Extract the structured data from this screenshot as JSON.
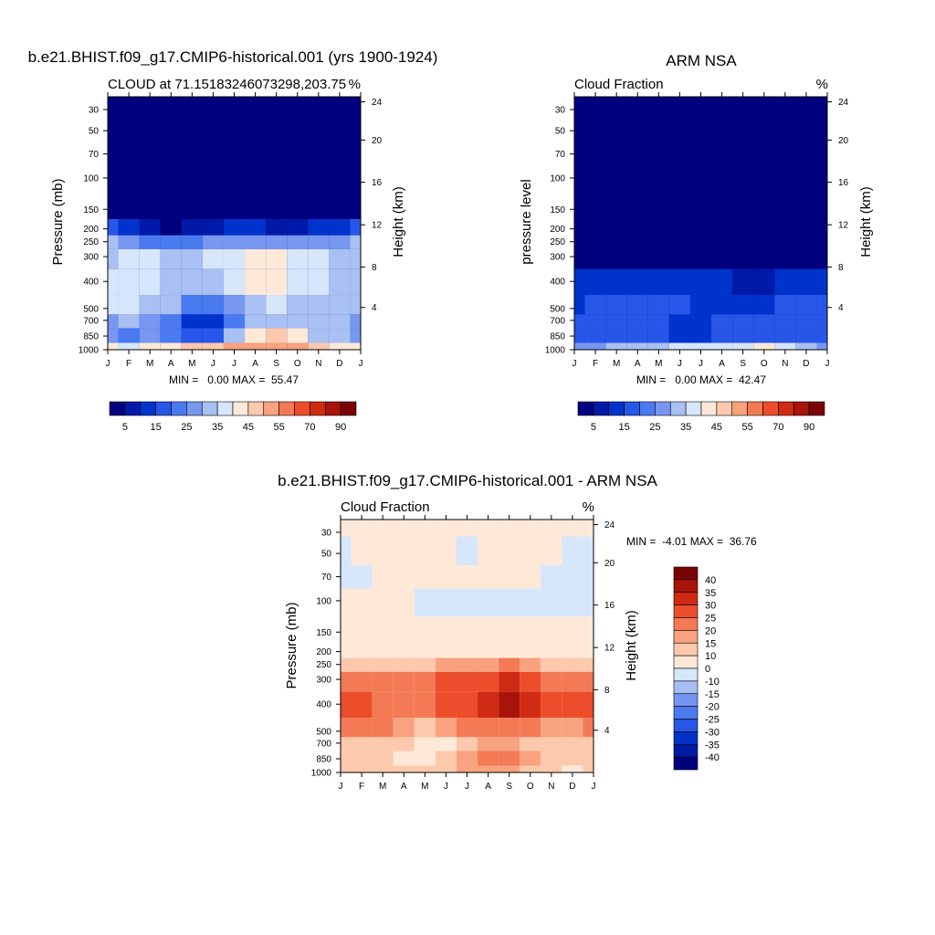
{
  "colors": {
    "model_obs_scale": [
      "#00007f",
      "#0019a8",
      "#0033cc",
      "#2856e8",
      "#4a7af0",
      "#7797f0",
      "#a9c0f4",
      "#d6e6fb",
      "#fee9d8",
      "#fcc9ad",
      "#f8a27f",
      "#f47a56",
      "#ec4d2b",
      "#cf2a14",
      "#a8130a",
      "#7a0403"
    ],
    "diff_scale": [
      "#00007f",
      "#001aa3",
      "#0033c7",
      "#2856e6",
      "#4b79ef",
      "#7595f1",
      "#a6c0f6",
      "#d6e6fb",
      "#fee9d8",
      "#fcc9ad",
      "#f9a27f",
      "#f47a56",
      "#ec4d2b",
      "#cf2a14",
      "#a8130a",
      "#7a0403"
    ]
  },
  "chart_data": [
    {
      "type": "heatmap",
      "id": "model",
      "suptitle": "b.e21.BHIST.f09_g17.CMIP6-historical.001 (yrs 1900-1924)",
      "title_left": "CLOUD at 71.15183246073298,203.75",
      "title_right": "%",
      "ylabel": "Pressure (mb)",
      "ylabel_right": "Height (km)",
      "months": [
        "J",
        "F",
        "M",
        "A",
        "M",
        "J",
        "J",
        "A",
        "S",
        "O",
        "N",
        "D",
        "J"
      ],
      "pressure_ticks": [
        "30",
        "50",
        "70",
        "100",
        "150",
        "200",
        "250",
        "300",
        "400",
        "500",
        "700",
        "850",
        "1000"
      ],
      "height_ticks": [
        "24",
        "20",
        "16",
        "12",
        "8",
        "4"
      ],
      "minmax": "MIN =   0.00 MAX =  55.47",
      "colorbar_labels": [
        "5",
        "15",
        "25",
        "35",
        "45",
        "55",
        "70",
        "90"
      ],
      "levels": [
        0,
        5,
        10,
        15,
        20,
        25,
        30,
        35,
        40,
        45,
        50,
        55,
        60,
        70,
        80,
        90
      ],
      "values": [
        [
          0,
          0,
          0,
          0,
          0,
          0,
          0,
          0,
          0,
          0,
          0,
          0,
          0
        ],
        [
          0,
          0,
          0,
          0,
          0,
          0,
          0,
          0,
          0,
          0,
          0,
          0,
          0
        ],
        [
          0,
          0,
          0,
          0,
          0,
          0,
          0,
          0,
          0,
          0,
          0,
          0,
          0
        ],
        [
          0,
          0,
          0,
          0,
          0,
          0,
          0,
          0,
          0,
          0,
          0,
          0,
          0
        ],
        [
          1,
          1,
          0,
          0,
          0,
          1,
          1,
          1,
          1,
          1,
          1,
          1,
          1
        ],
        [
          18,
          12,
          6,
          4,
          5,
          8,
          10,
          10,
          9,
          9,
          10,
          12,
          16
        ],
        [
          30,
          26,
          24,
          22,
          24,
          26,
          28,
          28,
          28,
          27,
          27,
          28,
          30
        ],
        [
          34,
          36,
          36,
          34,
          34,
          36,
          38,
          40,
          40,
          38,
          36,
          34,
          34
        ],
        [
          36,
          38,
          38,
          34,
          30,
          32,
          36,
          40,
          42,
          38,
          36,
          34,
          34
        ],
        [
          36,
          36,
          34,
          30,
          24,
          22,
          28,
          34,
          36,
          34,
          34,
          32,
          34
        ],
        [
          28,
          30,
          28,
          24,
          14,
          10,
          24,
          32,
          32,
          32,
          30,
          30,
          28
        ],
        [
          26,
          24,
          26,
          24,
          16,
          16,
          30,
          42,
          46,
          44,
          34,
          30,
          28
        ],
        [
          40,
          38,
          40,
          42,
          46,
          48,
          50,
          52,
          52,
          50,
          46,
          40,
          40
        ]
      ]
    },
    {
      "type": "heatmap",
      "id": "obs",
      "suptitle": "ARM NSA",
      "title_left": "Cloud Fraction",
      "title_right": "%",
      "ylabel": "pressure level",
      "ylabel_right": "Height (km)",
      "months": [
        "J",
        "F",
        "M",
        "A",
        "M",
        "J",
        "J",
        "A",
        "S",
        "O",
        "N",
        "D",
        "J"
      ],
      "pressure_ticks": [
        "30",
        "50",
        "70",
        "100",
        "150",
        "200",
        "250",
        "300",
        "400",
        "500",
        "700",
        "850",
        "1000"
      ],
      "height_ticks": [
        "24",
        "20",
        "16",
        "12",
        "8",
        "4"
      ],
      "minmax": "MIN =   0.00 MAX =  42.47",
      "colorbar_labels": [
        "5",
        "15",
        "25",
        "35",
        "45",
        "55",
        "70",
        "90"
      ],
      "levels": [
        0,
        5,
        10,
        15,
        20,
        25,
        30,
        35,
        40,
        45,
        50,
        55,
        60,
        70,
        80,
        90
      ],
      "values": [
        [
          0,
          0,
          0,
          0,
          0,
          0,
          0,
          0,
          0,
          0,
          0,
          0,
          0
        ],
        [
          0,
          0,
          0,
          0,
          0,
          0,
          0,
          0,
          0,
          0,
          0,
          0,
          0
        ],
        [
          0,
          0,
          0,
          0,
          0,
          0,
          0,
          0,
          0,
          0,
          0,
          0,
          0
        ],
        [
          0,
          0,
          0,
          0,
          0,
          0,
          0,
          0,
          0,
          0,
          0,
          0,
          0
        ],
        [
          0,
          0,
          0,
          0,
          0,
          0,
          0,
          0,
          0,
          0,
          0,
          0,
          0
        ],
        [
          0,
          0,
          0,
          0,
          0,
          0,
          0,
          0,
          0,
          0,
          0,
          0,
          0
        ],
        [
          0,
          0,
          0,
          0,
          0,
          0,
          0,
          0,
          0,
          0,
          0,
          0,
          0
        ],
        [
          4,
          4,
          3,
          2,
          2,
          2,
          3,
          3,
          4,
          4,
          3,
          3,
          4
        ],
        [
          10,
          12,
          10,
          10,
          12,
          14,
          12,
          10,
          8,
          8,
          10,
          12,
          10
        ],
        [
          14,
          16,
          15,
          16,
          16,
          16,
          14,
          14,
          14,
          14,
          16,
          18,
          16
        ],
        [
          16,
          18,
          16,
          16,
          16,
          14,
          12,
          16,
          16,
          16,
          18,
          18,
          16
        ],
        [
          18,
          16,
          16,
          17,
          16,
          12,
          14,
          16,
          18,
          18,
          18,
          18,
          18
        ],
        [
          26,
          26,
          30,
          30,
          34,
          36,
          36,
          36,
          36,
          40,
          36,
          34,
          26
        ]
      ]
    },
    {
      "type": "heatmap",
      "id": "diff",
      "suptitle": "b.e21.BHIST.f09_g17.CMIP6-historical.001 - ARM NSA",
      "title_left": "Cloud Fraction",
      "title_right": "%",
      "ylabel": "Pressure (mb)",
      "ylabel_right": "Height (km)",
      "months": [
        "J",
        "F",
        "M",
        "A",
        "M",
        "J",
        "J",
        "A",
        "S",
        "O",
        "N",
        "D",
        "J"
      ],
      "pressure_ticks": [
        "30",
        "50",
        "70",
        "100",
        "150",
        "200",
        "250",
        "300",
        "400",
        "500",
        "700",
        "850",
        "1000"
      ],
      "height_ticks": [
        "24",
        "20",
        "16",
        "12",
        "8",
        "4"
      ],
      "minmax": "MIN =  -4.01 MAX =  36.76",
      "colorbar_labels": [
        "40",
        "35",
        "30",
        "25",
        "20",
        "15",
        "10",
        "0",
        "-10",
        "-15",
        "-20",
        "-25",
        "-30",
        "-35",
        "-40"
      ],
      "levels": [
        -45,
        -40,
        -35,
        -30,
        -25,
        -20,
        -15,
        -10,
        0,
        10,
        15,
        20,
        25,
        30,
        35,
        40
      ],
      "values": [
        [
          1,
          1,
          1,
          1,
          1,
          1,
          1,
          1,
          1,
          1,
          1,
          1,
          1
        ],
        [
          -1,
          1,
          1,
          1,
          1,
          1,
          -1,
          1,
          1,
          1,
          1,
          -1,
          -1
        ],
        [
          -1,
          -1,
          1,
          1,
          1,
          1,
          1,
          1,
          1,
          1,
          -1,
          -1,
          -1
        ],
        [
          1,
          1,
          1,
          1,
          -1,
          -1,
          -1,
          -1,
          -1,
          -1,
          -1,
          -1,
          -1
        ],
        [
          1,
          1,
          1,
          1,
          1,
          1,
          1,
          1,
          1,
          1,
          1,
          1,
          1
        ],
        [
          2,
          2,
          2,
          2,
          2,
          2,
          2,
          2,
          2,
          2,
          2,
          2,
          2
        ],
        [
          14,
          12,
          10,
          10,
          12,
          16,
          16,
          18,
          20,
          18,
          14,
          12,
          14
        ],
        [
          22,
          20,
          20,
          20,
          22,
          26,
          28,
          28,
          32,
          26,
          22,
          22,
          22
        ],
        [
          28,
          28,
          24,
          22,
          24,
          28,
          28,
          32,
          36,
          32,
          26,
          26,
          28
        ],
        [
          22,
          22,
          20,
          16,
          14,
          16,
          20,
          22,
          22,
          20,
          18,
          18,
          22
        ],
        [
          14,
          12,
          14,
          10,
          8,
          8,
          12,
          18,
          16,
          14,
          12,
          12,
          14
        ],
        [
          12,
          14,
          12,
          8,
          8,
          12,
          18,
          22,
          24,
          18,
          14,
          12,
          12
        ],
        [
          10,
          14,
          12,
          10,
          12,
          14,
          16,
          18,
          16,
          12,
          10,
          8,
          10
        ]
      ]
    }
  ]
}
